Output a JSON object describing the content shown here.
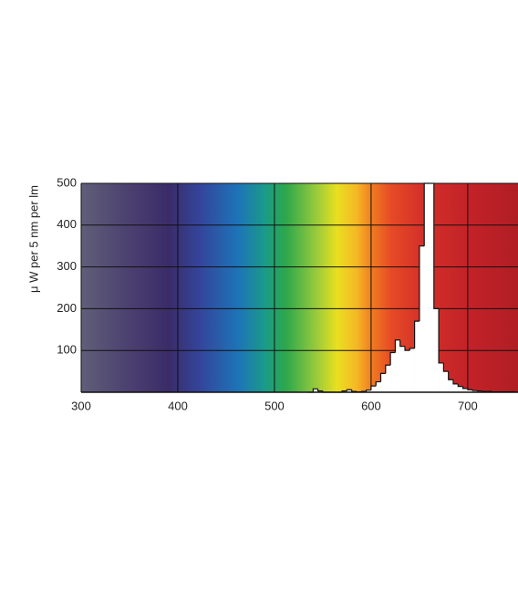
{
  "chart_data": {
    "type": "histogram",
    "y_label": "μ W per 5 nm per lm",
    "xlim": [
      300,
      752
    ],
    "ylim": [
      0,
      500
    ],
    "xticks": [
      300,
      400,
      500,
      600,
      700
    ],
    "yticks": [
      100,
      200,
      300,
      400,
      500
    ],
    "grid": true,
    "color": "#ffffff",
    "bins": [
      535,
      540,
      545,
      550,
      555,
      560,
      565,
      570,
      575,
      580,
      585,
      590,
      595,
      600,
      605,
      610,
      615,
      620,
      625,
      630,
      635,
      640,
      645,
      650,
      655,
      660,
      665,
      670,
      675,
      680,
      685,
      690,
      695,
      700,
      705,
      710,
      715,
      720,
      725,
      730,
      735,
      740,
      745,
      750
    ],
    "values": [
      0,
      8,
      3,
      0,
      0,
      0,
      0,
      3,
      6,
      2,
      1,
      2,
      5,
      15,
      25,
      45,
      65,
      95,
      125,
      110,
      100,
      105,
      170,
      350,
      500,
      500,
      200,
      70,
      50,
      30,
      20,
      14,
      9,
      6,
      4,
      3,
      2,
      2,
      1,
      1,
      1,
      1,
      1
    ]
  }
}
